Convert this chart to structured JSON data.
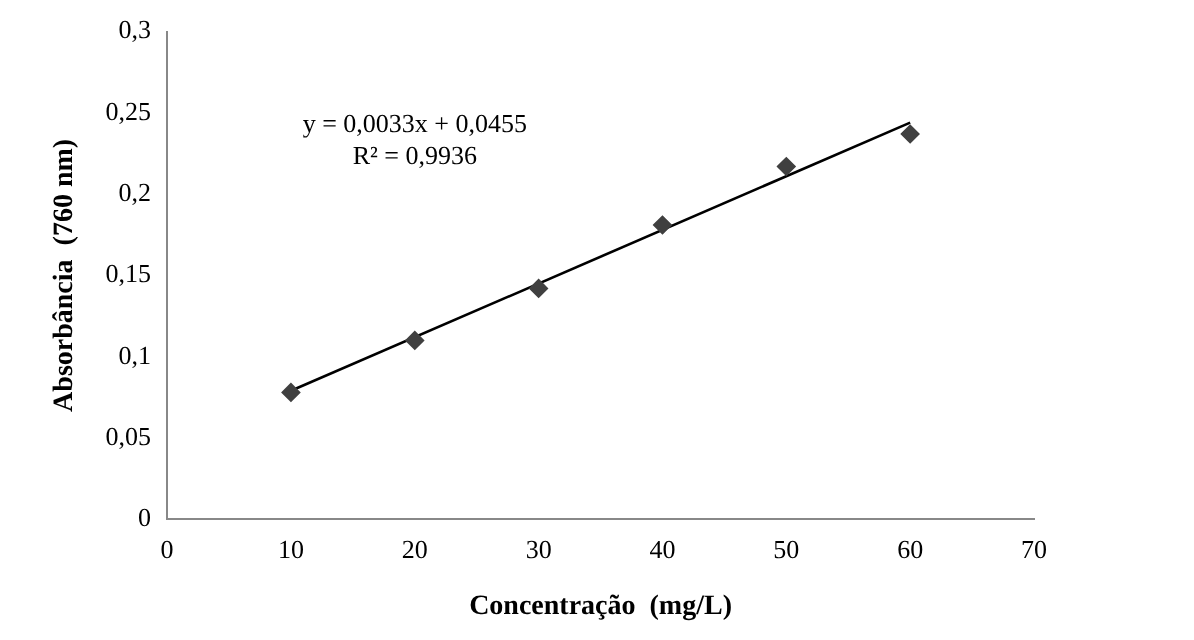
{
  "chart_data": {
    "type": "scatter",
    "xlabel": "Concentração  (mg/L)",
    "ylabel": "Absorbância  (760 nm)",
    "series": [
      {
        "color": "#404040",
        "marker": "diamond",
        "x": [
          10,
          20,
          30,
          40,
          50,
          60
        ],
        "values": [
          0.078,
          0.11,
          0.142,
          0.181,
          0.217,
          0.237
        ]
      },
      {
        "type": "line",
        "color": "#000000",
        "marker": "none",
        "x": [
          10,
          60
        ],
        "values": [
          0.079,
          0.244
        ]
      }
    ],
    "xlim": [
      0,
      70
    ],
    "xticks": [
      0,
      10,
      20,
      30,
      40,
      50,
      60,
      70
    ],
    "ylim": [
      0,
      0.3
    ],
    "yticks": [
      0,
      {
        "value": 0.05,
        "label": "0,05"
      },
      {
        "value": 0.1,
        "label": "0,1"
      },
      {
        "value": 0.15,
        "label": "0,15"
      },
      {
        "value": 0.2,
        "label": "0,2"
      },
      {
        "value": 0.25,
        "label": "0,25"
      },
      {
        "value": 0.3,
        "label": "0,3"
      }
    ],
    "annotations": [
      "y = 0,0033x + 0,0455",
      "R² = 0,9936"
    ],
    "grid": false,
    "legend": false
  }
}
